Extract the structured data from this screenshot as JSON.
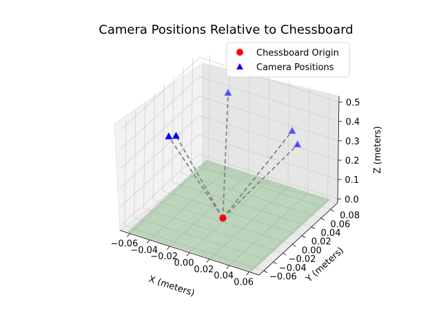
{
  "chart_data": {
    "type": "scatter3d",
    "title": "Camera Positions Relative to Chessboard",
    "xlabel": "X (meters)",
    "ylabel": "Y (meters)",
    "zlabel": "Z (meters)",
    "xticks": [
      "−0.06",
      "−0.04",
      "−0.02",
      "0.00",
      "0.02",
      "0.04",
      "0.06"
    ],
    "yticks": [
      "−0.06",
      "−0.04",
      "−0.02",
      "0.00",
      "0.02",
      "0.04",
      "0.06",
      "0.08"
    ],
    "zticks": [
      "0.0",
      "0.1",
      "0.2",
      "0.3",
      "0.4",
      "0.5"
    ],
    "legend": {
      "position": "top-right",
      "entries": [
        {
          "label": "Chessboard Origin",
          "marker": "circle",
          "color": "#ff0000"
        },
        {
          "label": "Camera Positions",
          "marker": "triangle",
          "color": "#0000ff"
        }
      ]
    },
    "series": [
      {
        "name": "Chessboard Origin",
        "points": [
          {
            "x": 0.0,
            "y": 0.0,
            "z": 0.0
          }
        ]
      },
      {
        "name": "Camera Positions",
        "points": [
          {
            "x": -0.06,
            "y": 0.01,
            "z": 0.3
          },
          {
            "x": -0.055,
            "y": 0.015,
            "z": 0.3
          },
          {
            "x": -0.02,
            "y": 0.05,
            "z": 0.5
          },
          {
            "x": 0.04,
            "y": 0.06,
            "z": 0.38
          },
          {
            "x": 0.055,
            "y": 0.04,
            "z": 0.38
          }
        ]
      }
    ],
    "chessboard_plane": {
      "color": "#2e8b2e",
      "z": 0.0
    },
    "connector_color": "#808080",
    "grid": true
  }
}
